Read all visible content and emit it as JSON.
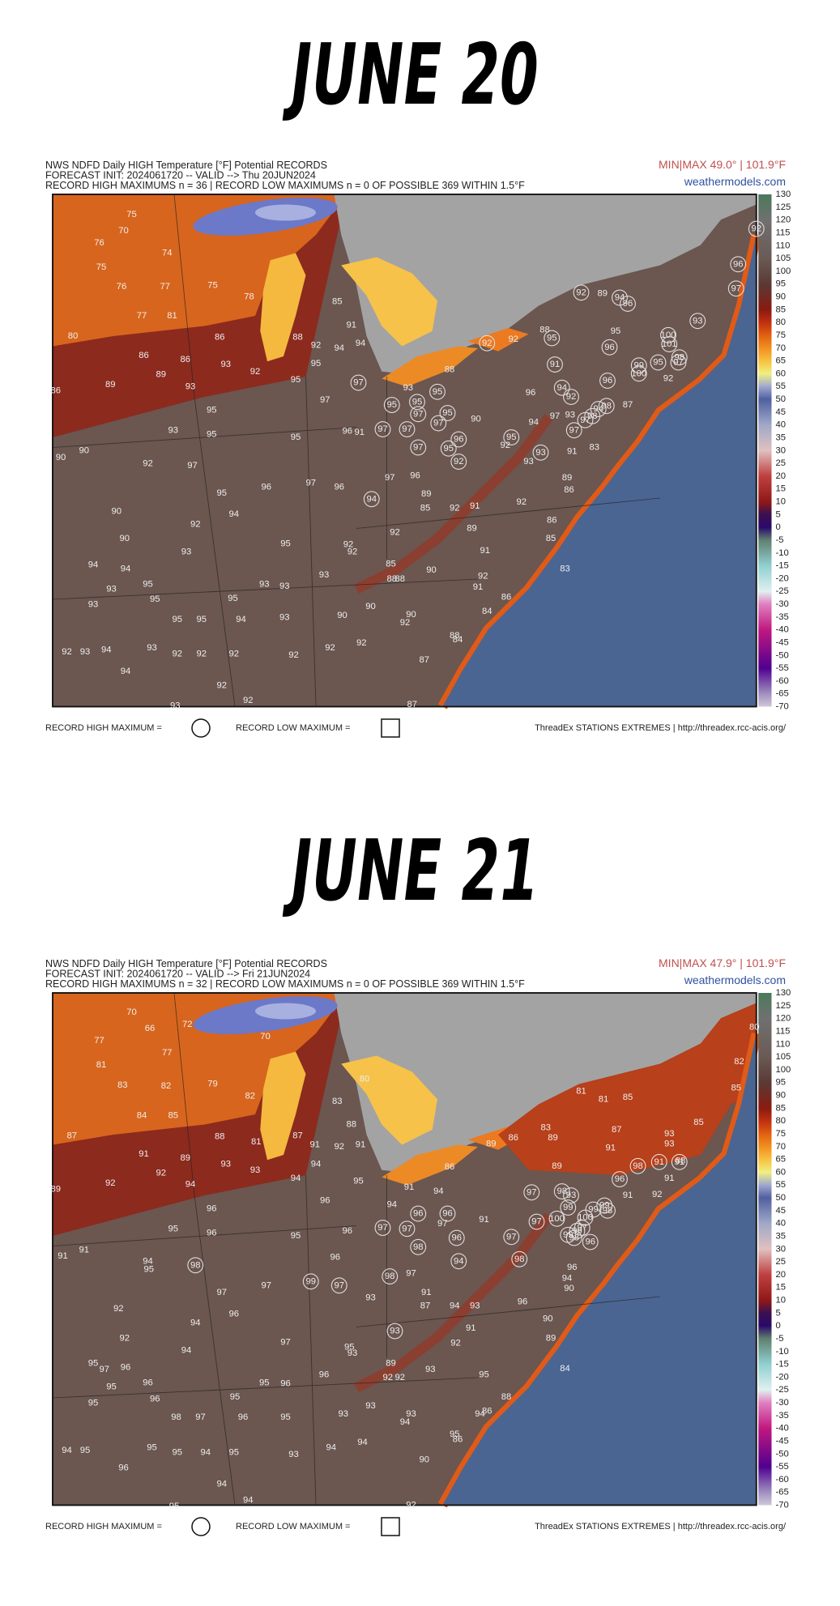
{
  "colorbar": {
    "range": [
      -70,
      130
    ],
    "ticks": [
      130,
      125,
      120,
      115,
      110,
      105,
      100,
      95,
      90,
      85,
      80,
      75,
      70,
      65,
      60,
      55,
      50,
      45,
      40,
      35,
      30,
      25,
      20,
      15,
      10,
      5,
      0,
      -5,
      -10,
      -15,
      -20,
      -25,
      -30,
      -35,
      -40,
      -45,
      -50,
      -55,
      -60,
      -65,
      -70
    ]
  },
  "legend": {
    "record_high": "RECORD HIGH MAXIMUM =",
    "record_low": "RECORD LOW MAXIMUM =",
    "source": "ThreadEx STATIONS EXTREMES | http://threadex.rcc-acis.org/"
  },
  "maps": [
    {
      "title": "JUNE 20",
      "header": [
        "NWS NDFD Daily HIGH Temperature [°F] Potential RECORDS",
        "FORECAST INIT: 2024061720 -- VALID --> Thu 20JUN2024",
        "RECORD HIGH MAXIMUMS n = 36 | RECORD LOW MAXIMUMS n = 0 OF POSSIBLE 369 WITHIN 1.5°F"
      ],
      "minmax": "MIN|MAX 49.0° | 101.9°F",
      "brand": "weathermodels.com",
      "stations": [
        75,
        70,
        76,
        74,
        75,
        76,
        77,
        75,
        78,
        77,
        81,
        80,
        86,
        86,
        86,
        89,
        89,
        93,
        93,
        85,
        88,
        91,
        92,
        94,
        94,
        92,
        95,
        95,
        97,
        95,
        93,
        95,
        95,
        96,
        91,
        90,
        92,
        97,
        90,
        95,
        96,
        97,
        96,
        90,
        92,
        94,
        90,
        93,
        95,
        94,
        94,
        93,
        95,
        95,
        93,
        95,
        95,
        94,
        93,
        95,
        93,
        93,
        93,
        92,
        93,
        94,
        93,
        92,
        92,
        92,
        92,
        92,
        92,
        90,
        90,
        90,
        92,
        94,
        92,
        93,
        92,
        87,
        87,
        88,
        84,
        84,
        86,
        91,
        92,
        83,
        90,
        88,
        88,
        85,
        92,
        92,
        92,
        89,
        91,
        85,
        86,
        92,
        91,
        92,
        85,
        89,
        96,
        97,
        90,
        92,
        94,
        96,
        97,
        93,
        83,
        91,
        89,
        86,
        93,
        88,
        93,
        92,
        88,
        95,
        89,
        87,
        92,
        86
      ],
      "records": [
        92,
        96,
        97,
        92,
        94,
        96,
        93,
        100,
        101,
        92,
        95,
        96,
        91,
        99,
        100,
        95,
        97,
        98,
        97,
        95,
        95,
        95,
        97,
        95,
        97,
        97,
        97,
        96,
        97,
        95,
        92,
        95,
        94,
        92,
        96,
        98,
        94,
        97,
        98,
        97,
        93,
        94
      ]
    },
    {
      "title": "JUNE 21",
      "header": [
        "NWS NDFD Daily HIGH Temperature [°F] Potential RECORDS",
        "FORECAST INIT: 2024061720 -- VALID --> Fri 21JUN2024",
        "RECORD HIGH MAXIMUMS n = 32 | RECORD LOW MAXIMUMS n = 0 OF POSSIBLE 369 WITHIN 1.5°F"
      ],
      "minmax": "MIN|MAX 47.9° | 101.9°F",
      "brand": "weathermodels.com",
      "stations": [
        70,
        66,
        77,
        72,
        77,
        70,
        81,
        83,
        82,
        79,
        82,
        84,
        85,
        87,
        88,
        81,
        87,
        91,
        89,
        92,
        92,
        93,
        94,
        93,
        80,
        83,
        88,
        91,
        92,
        91,
        94,
        94,
        95,
        96,
        96,
        95,
        96,
        95,
        96,
        89,
        91,
        91,
        94,
        95,
        97,
        97,
        96,
        93,
        97,
        91,
        87,
        94,
        93,
        92,
        94,
        96,
        92,
        94,
        97,
        95,
        97,
        96,
        95,
        96,
        96,
        95,
        95,
        98,
        97,
        96,
        95,
        96,
        95,
        96,
        93,
        93,
        95,
        93,
        92,
        92,
        89,
        93,
        93,
        94,
        94,
        95,
        95,
        96,
        95,
        94,
        95,
        93,
        94,
        94,
        94,
        95,
        94,
        92,
        90,
        95,
        86,
        86,
        88,
        94,
        95,
        92,
        91,
        89,
        84,
        90,
        96,
        90,
        94,
        96,
        94,
        86,
        91,
        94,
        89,
        86,
        89,
        83,
        89,
        81,
        81,
        85,
        87,
        91,
        85,
        82,
        80,
        85,
        93,
        93,
        88,
        91,
        91,
        91,
        97,
        92
      ],
      "records": [
        96,
        98,
        91,
        91,
        97,
        98,
        93,
        96,
        96,
        97,
        97,
        98,
        96,
        97,
        97,
        100,
        99,
        100,
        99,
        99,
        98,
        97,
        99,
        98,
        96,
        99,
        94,
        98,
        98,
        99,
        97,
        98,
        93
      ]
    }
  ]
}
